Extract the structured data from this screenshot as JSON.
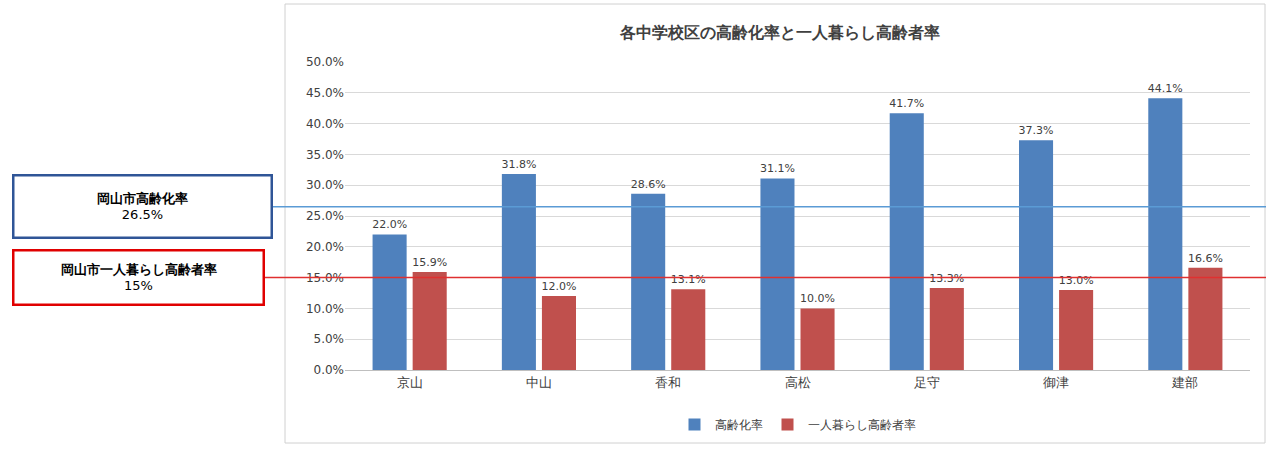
{
  "chart_data": {
    "type": "bar",
    "title": "各中学校区の高齢化率と一人暮らし高齢者率",
    "categories": [
      "京山",
      "中山",
      "香和",
      "高松",
      "足守",
      "御津",
      "建部"
    ],
    "series": [
      {
        "name": "高齢化率",
        "color": "#4f81bd",
        "values": [
          22.0,
          31.8,
          28.6,
          31.1,
          41.7,
          37.3,
          44.1
        ],
        "value_labels": [
          "22.0%",
          "31.8%",
          "28.6%",
          "31.1%",
          "41.7%",
          "37.3%",
          "44.1%"
        ]
      },
      {
        "name": "一人暮らし高齢者率",
        "color": "#c0504d",
        "values": [
          15.9,
          12.0,
          13.1,
          10.0,
          13.3,
          13.0,
          16.6
        ],
        "value_labels": [
          "15.9%",
          "12.0%",
          "13.1%",
          "10.0%",
          "13.3%",
          "13.0%",
          "16.6%"
        ]
      }
    ],
    "ylim": [
      0,
      50
    ],
    "yticks": [
      {
        "value": 0,
        "label": "0.0%"
      },
      {
        "value": 5,
        "label": "5.0%"
      },
      {
        "value": 10,
        "label": "10.0%"
      },
      {
        "value": 15,
        "label": "15.0%"
      },
      {
        "value": 20,
        "label": "20.0%"
      },
      {
        "value": 25,
        "label": "25.0%"
      },
      {
        "value": 30,
        "label": "30.0%"
      },
      {
        "value": 35,
        "label": "35.0%"
      },
      {
        "value": 40,
        "label": "40.0%"
      },
      {
        "value": 45,
        "label": "45.0%"
      },
      {
        "value": 50,
        "label": "50.0%"
      }
    ],
    "grid": true,
    "legend": "bottom",
    "data_labels": true,
    "reference_lines": [
      {
        "label": "岡山市高齢化率",
        "value": 26.5,
        "value_label": "26.5%",
        "color": "#5b9bd5"
      },
      {
        "label": "岡山市一人暮らし高齢者率",
        "value": 15,
        "value_label": "15%",
        "color": "#e03030"
      }
    ]
  }
}
